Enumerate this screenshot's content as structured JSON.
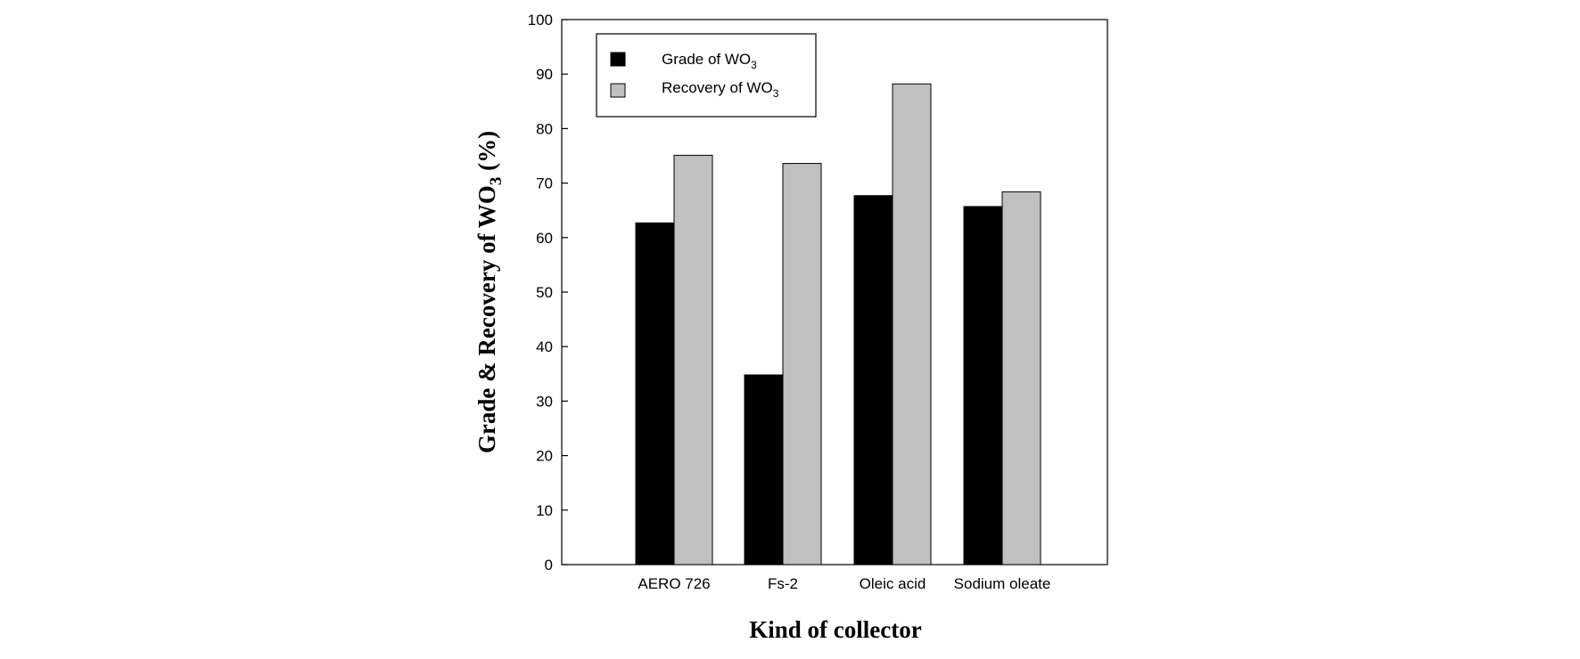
{
  "chart_data": {
    "type": "bar",
    "categories": [
      "AERO 726",
      "Fs-2",
      "Oleic acid",
      "Sodium oleate"
    ],
    "series": [
      {
        "name": "Grade of WO",
        "name_subscript": "3",
        "color": "#000000",
        "values": [
          62.7,
          34.8,
          67.7,
          65.7
        ]
      },
      {
        "name": "Recovery of WO",
        "name_subscript": "3",
        "color": "#c0c0c0",
        "values": [
          75.1,
          73.6,
          88.2,
          68.4
        ]
      }
    ],
    "xlabel": "Kind of collector",
    "ylabel": "Grade & Recovery of WO",
    "ylabel_subscript": "3",
    "ylabel_suffix": " (%)",
    "ylim": [
      0,
      100
    ],
    "yticks": [
      "0",
      "10",
      "20",
      "30",
      "40",
      "50",
      "60",
      "70",
      "80",
      "90",
      "100"
    ],
    "grid": false,
    "legend_position": "top-left"
  }
}
